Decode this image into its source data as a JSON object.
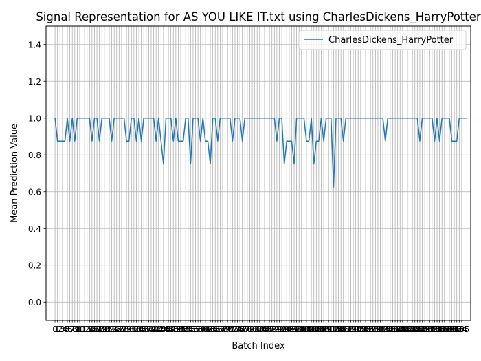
{
  "chart_data": {
    "type": "line",
    "title": "Signal Representation for AS YOU LIKE IT.txt using CharlesDickens_HarryPotter",
    "xlabel": "Batch Index",
    "ylabel": "Mean Prediction Value",
    "xlim": [
      -3.65,
      168.65
    ],
    "ylim": [
      -0.1,
      1.5
    ],
    "yticks": [
      0.0,
      0.2,
      0.4,
      0.6,
      0.8,
      1.0,
      1.2,
      1.4
    ],
    "ytick_labels": [
      "0.0",
      "0.2",
      "0.4",
      "0.6",
      "0.8",
      "1.0",
      "1.2",
      "1.4"
    ],
    "x_tick_count": 166,
    "grid": true,
    "legend_position": "top-right",
    "line_color": "#1f77b4",
    "series": [
      {
        "name": "CharlesDickens_HarryPotter",
        "values": [
          1.0,
          0.875,
          0.875,
          0.875,
          0.875,
          1.0,
          0.875,
          1.0,
          0.875,
          1.0,
          1.0,
          1.0,
          1.0,
          1.0,
          1.0,
          0.875,
          1.0,
          1.0,
          0.875,
          1.0,
          1.0,
          1.0,
          1.0,
          0.875,
          1.0,
          1.0,
          1.0,
          1.0,
          1.0,
          0.875,
          0.875,
          1.0,
          1.0,
          0.875,
          1.0,
          0.875,
          1.0,
          1.0,
          1.0,
          1.0,
          1.0,
          0.875,
          1.0,
          0.875,
          0.75,
          1.0,
          1.0,
          1.0,
          0.875,
          1.0,
          0.875,
          0.875,
          0.875,
          1.0,
          1.0,
          0.75,
          1.0,
          1.0,
          1.0,
          0.875,
          1.0,
          0.875,
          0.875,
          0.75,
          1.0,
          1.0,
          0.875,
          1.0,
          1.0,
          1.0,
          1.0,
          1.0,
          0.875,
          1.0,
          1.0,
          1.0,
          0.875,
          1.0,
          1.0,
          1.0,
          1.0,
          1.0,
          1.0,
          1.0,
          1.0,
          1.0,
          1.0,
          1.0,
          1.0,
          1.0,
          0.875,
          1.0,
          1.0,
          0.75,
          0.875,
          0.875,
          0.875,
          0.75,
          1.0,
          1.0,
          1.0,
          1.0,
          0.875,
          0.875,
          1.0,
          0.75,
          0.875,
          0.875,
          1.0,
          0.875,
          1.0,
          1.0,
          1.0,
          0.625,
          1.0,
          1.0,
          1.0,
          0.875,
          1.0,
          1.0,
          1.0,
          1.0,
          1.0,
          1.0,
          1.0,
          1.0,
          1.0,
          1.0,
          1.0,
          1.0,
          1.0,
          1.0,
          1.0,
          1.0,
          0.875,
          1.0,
          1.0,
          1.0,
          1.0,
          1.0,
          1.0,
          1.0,
          1.0,
          1.0,
          1.0,
          1.0,
          1.0,
          1.0,
          0.875,
          1.0,
          1.0,
          1.0,
          1.0,
          1.0,
          0.875,
          1.0,
          0.875,
          1.0,
          1.0,
          1.0,
          1.0,
          0.875,
          0.875,
          0.875,
          1.0,
          1.0,
          1.0,
          1.0
        ]
      }
    ]
  }
}
